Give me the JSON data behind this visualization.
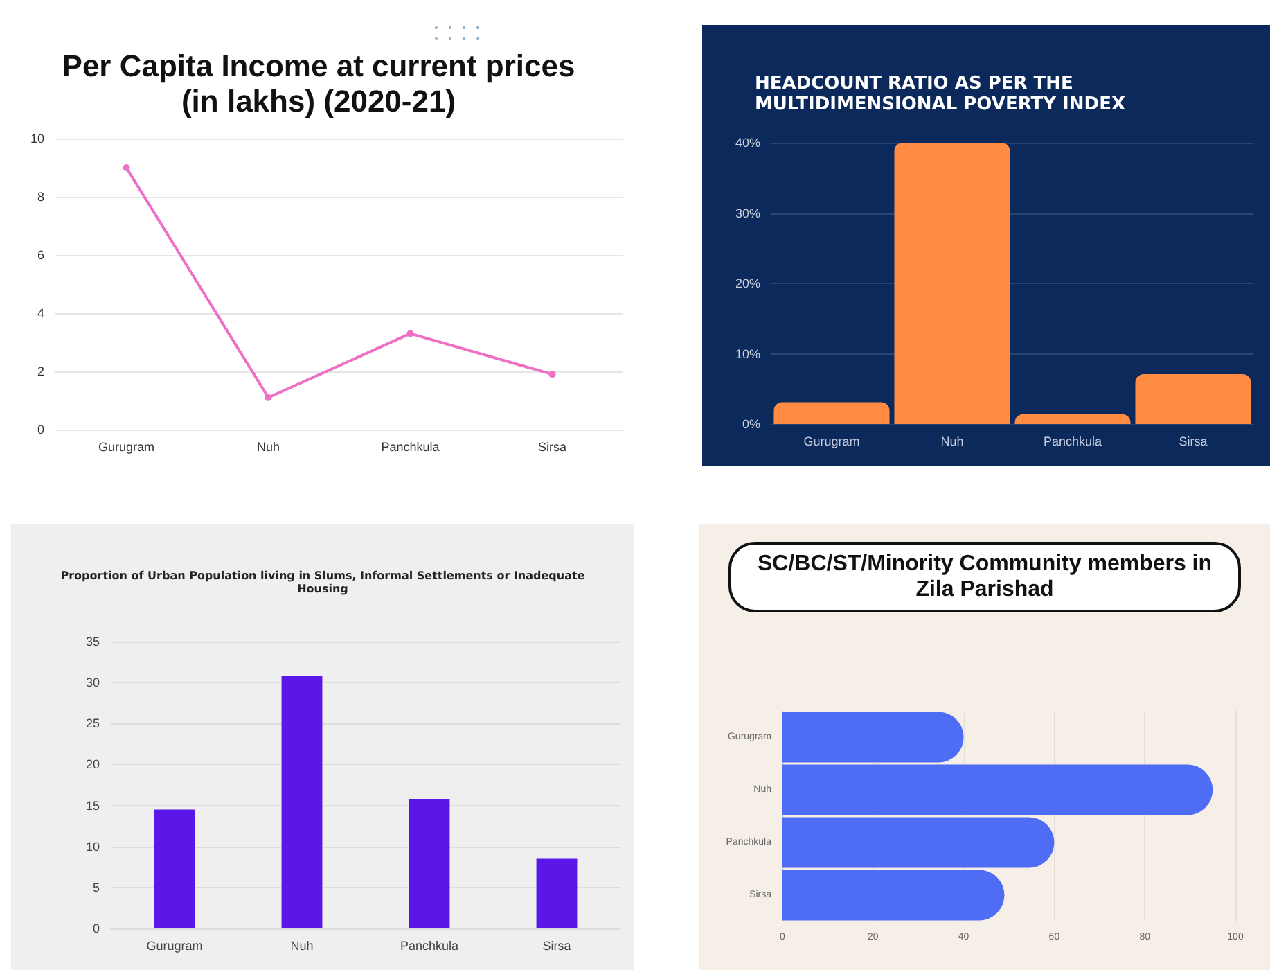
{
  "chart_data": [
    {
      "type": "line",
      "title": "Per Capita Income at current prices\n(in lakhs) (2020-21)",
      "categories": [
        "Gurugram",
        "Nuh",
        "Panchkula",
        "Sirsa"
      ],
      "series": [
        {
          "color": "#ee6fc4",
          "values": [
            9.0,
            1.1,
            3.3,
            1.9
          ]
        }
      ],
      "ylim": [
        0,
        10
      ],
      "yticks": [
        0,
        2,
        4,
        6,
        8,
        10
      ],
      "grid": "y",
      "marker": "circle",
      "line_style": "solid"
    },
    {
      "type": "bar",
      "title": "HEADCOUNT RATIO AS PER THE\nMULTIDIMENSIONAL POVERTY INDEX",
      "categories": [
        "Gurugram",
        "Nuh",
        "Panchkula",
        "Sirsa"
      ],
      "series": [
        {
          "color": "#ff8c42",
          "values": [
            3.1,
            40,
            1.4,
            7.1
          ]
        }
      ],
      "ylim": [
        0,
        40
      ],
      "yticks": [
        {
          "value": 0,
          "label": "0%"
        },
        {
          "value": 10,
          "label": "10%"
        },
        {
          "value": 20,
          "label": "20%"
        },
        {
          "value": 30,
          "label": "30%"
        },
        {
          "value": 40,
          "label": "40%"
        }
      ],
      "grid": "y"
    },
    {
      "type": "bar",
      "title": "Proportion of Urban Population living in Slums, Informal Settlements or Inadequate\nHousing",
      "categories": [
        "Gurugram",
        "Nuh",
        "Panchkula",
        "Sirsa"
      ],
      "series": [
        {
          "color": "#5b17e8",
          "values": [
            14.5,
            30.8,
            15.8,
            8.5
          ]
        }
      ],
      "ylim": [
        0,
        35
      ],
      "yticks": [
        0,
        5,
        10,
        15,
        20,
        25,
        30,
        35
      ],
      "grid": "y"
    },
    {
      "type": "bar",
      "orientation": "horizontal",
      "title": "SC/BC/ST/Minority Community members in\nZila Parishad",
      "categories": [
        "Gurugram",
        "Nuh",
        "Panchkula",
        "Sirsa"
      ],
      "series": [
        {
          "color": "#4f6cf5",
          "values": [
            40,
            95,
            60,
            49
          ]
        }
      ],
      "xlim": [
        0,
        100
      ],
      "xticks": [
        0,
        20,
        40,
        60,
        80,
        100
      ],
      "grid": "x"
    }
  ]
}
